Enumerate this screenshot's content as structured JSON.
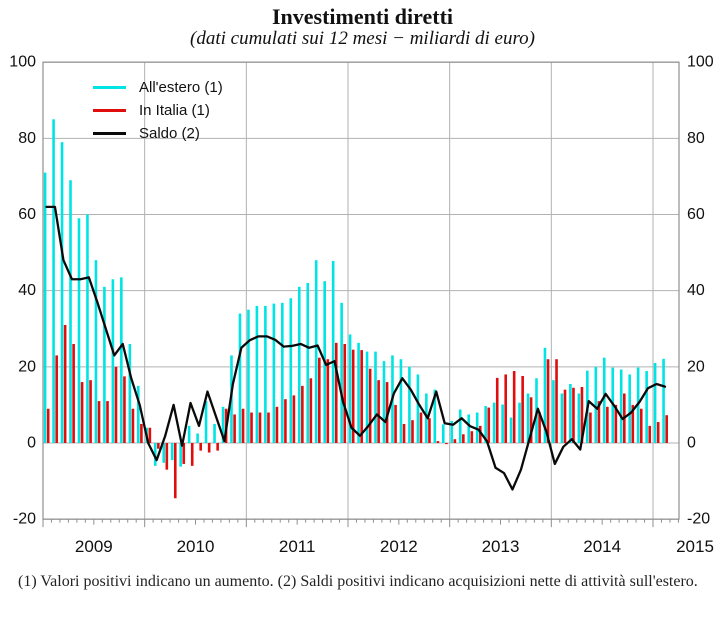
{
  "title": "Investimenti diretti",
  "subtitle": "(dati cumulati sui 12 mesi − miliardi di euro)",
  "footnote": "(1) Valori positivi indicano un aumento. (2) Saldi positivi indicano acquisizioni nette di attività sull'estero.",
  "legend": {
    "items": [
      {
        "label": "All'estero (1)",
        "color": "#00e4e4"
      },
      {
        "label": "In Italia (1)",
        "color": "#e00d0d"
      },
      {
        "label": "Saldo (2)",
        "color": "#0a0a0a"
      }
    ]
  },
  "colors": {
    "estero": "#00e4e4",
    "italia": "#e00d0d",
    "saldo": "#0a0a0a",
    "gridline": "#b2b2b2",
    "frame": "#8f8f8f",
    "text": "#111111"
  },
  "chart_data": {
    "type": "bar+line",
    "frequency": "monthly",
    "x_start": "2009-01",
    "x_end": "2015-02",
    "ylim": [
      -20,
      100
    ],
    "y_ticks": [
      -20,
      0,
      20,
      40,
      60,
      80,
      100
    ],
    "y_axis_sides": "both",
    "grid": "on",
    "legend_position": "top-left-inside",
    "x_year_labels": [
      "2009",
      "2010",
      "2011",
      "2012",
      "2013",
      "2014",
      "2015"
    ],
    "months": [
      "2009-01",
      "2009-02",
      "2009-03",
      "2009-04",
      "2009-05",
      "2009-06",
      "2009-07",
      "2009-08",
      "2009-09",
      "2009-10",
      "2009-11",
      "2009-12",
      "2010-01",
      "2010-02",
      "2010-03",
      "2010-04",
      "2010-05",
      "2010-06",
      "2010-07",
      "2010-08",
      "2010-09",
      "2010-10",
      "2010-11",
      "2010-12",
      "2011-01",
      "2011-02",
      "2011-03",
      "2011-04",
      "2011-05",
      "2011-06",
      "2011-07",
      "2011-08",
      "2011-09",
      "2011-10",
      "2011-11",
      "2011-12",
      "2012-01",
      "2012-02",
      "2012-03",
      "2012-04",
      "2012-05",
      "2012-06",
      "2012-07",
      "2012-08",
      "2012-09",
      "2012-10",
      "2012-11",
      "2012-12",
      "2013-01",
      "2013-02",
      "2013-03",
      "2013-04",
      "2013-05",
      "2013-06",
      "2013-07",
      "2013-08",
      "2013-09",
      "2013-10",
      "2013-11",
      "2013-12",
      "2014-01",
      "2014-02",
      "2014-03",
      "2014-04",
      "2014-05",
      "2014-06",
      "2014-07",
      "2014-08",
      "2014-09",
      "2014-10",
      "2014-11",
      "2014-12",
      "2015-01",
      "2015-02"
    ],
    "series": [
      {
        "name": "All'estero (1)",
        "type": "bar",
        "color": "#00e4e4",
        "values": [
          71,
          85,
          79,
          69,
          59,
          60,
          48,
          41,
          43,
          43.5,
          26,
          15,
          4,
          -6,
          -5.2,
          -4.5,
          -6.2,
          4.5,
          2.5,
          11,
          5,
          9.5,
          23,
          34,
          35,
          36,
          36,
          36.6,
          36.8,
          38,
          41,
          42,
          48,
          42.5,
          47.8,
          36.8,
          28.5,
          26.3,
          24,
          24,
          21.5,
          23,
          22,
          20,
          18,
          13,
          14,
          4.9,
          5.8,
          8.8,
          7.5,
          8,
          9.7,
          10.6,
          10.1,
          6.7,
          10.6,
          13,
          17,
          25,
          16.5,
          13,
          15.5,
          13,
          19,
          20,
          22.4,
          19.8,
          19.3,
          18,
          19.8,
          18.9,
          21,
          22.1
        ]
      },
      {
        "name": "In Italia (1)",
        "type": "bar",
        "color": "#e00d0d",
        "values": [
          9,
          23,
          31,
          26,
          16,
          16.5,
          11,
          11,
          20,
          17.5,
          9,
          5,
          4,
          -1.5,
          -7,
          -14.5,
          -5.5,
          -6,
          -2,
          -2.5,
          -2,
          9,
          7.5,
          9,
          8,
          8,
          8,
          9.5,
          11.5,
          12.5,
          15,
          17,
          22.4,
          22,
          26.3,
          26,
          24.5,
          24.4,
          19.5,
          16.5,
          16,
          10,
          5,
          6,
          8,
          6.5,
          0.5,
          -0.3,
          1,
          2.3,
          3.1,
          4.5,
          9.3,
          17.1,
          18,
          18.9,
          17.6,
          12,
          8,
          22,
          22,
          14,
          14.5,
          14.7,
          8,
          11,
          9.5,
          10,
          13,
          10,
          9,
          4.5,
          5.5,
          7.3
        ]
      },
      {
        "name": "Saldo (2)",
        "type": "line",
        "color": "#0a0a0a",
        "values": [
          62,
          62,
          48,
          43,
          43,
          43.5,
          37,
          30,
          23,
          26,
          17,
          10,
          0,
          -4.5,
          1.8,
          10,
          -0.7,
          10.5,
          4.5,
          13.5,
          7,
          0.5,
          15.5,
          25,
          27,
          28,
          28,
          27.1,
          25.3,
          25.5,
          26,
          25,
          25.6,
          20.5,
          21.5,
          10.8,
          4,
          1.9,
          4.5,
          7.5,
          5.5,
          13,
          17,
          14,
          10,
          6.5,
          13.5,
          5.2,
          4.8,
          6.5,
          4.4,
          3.5,
          0.4,
          -6.5,
          -7.9,
          -12.2,
          -7,
          1,
          9,
          3,
          -5.5,
          -1,
          1,
          -1.7,
          11,
          9,
          12.9,
          9.8,
          6.3,
          8,
          10.8,
          14.4,
          15.5,
          14.8
        ]
      }
    ]
  }
}
